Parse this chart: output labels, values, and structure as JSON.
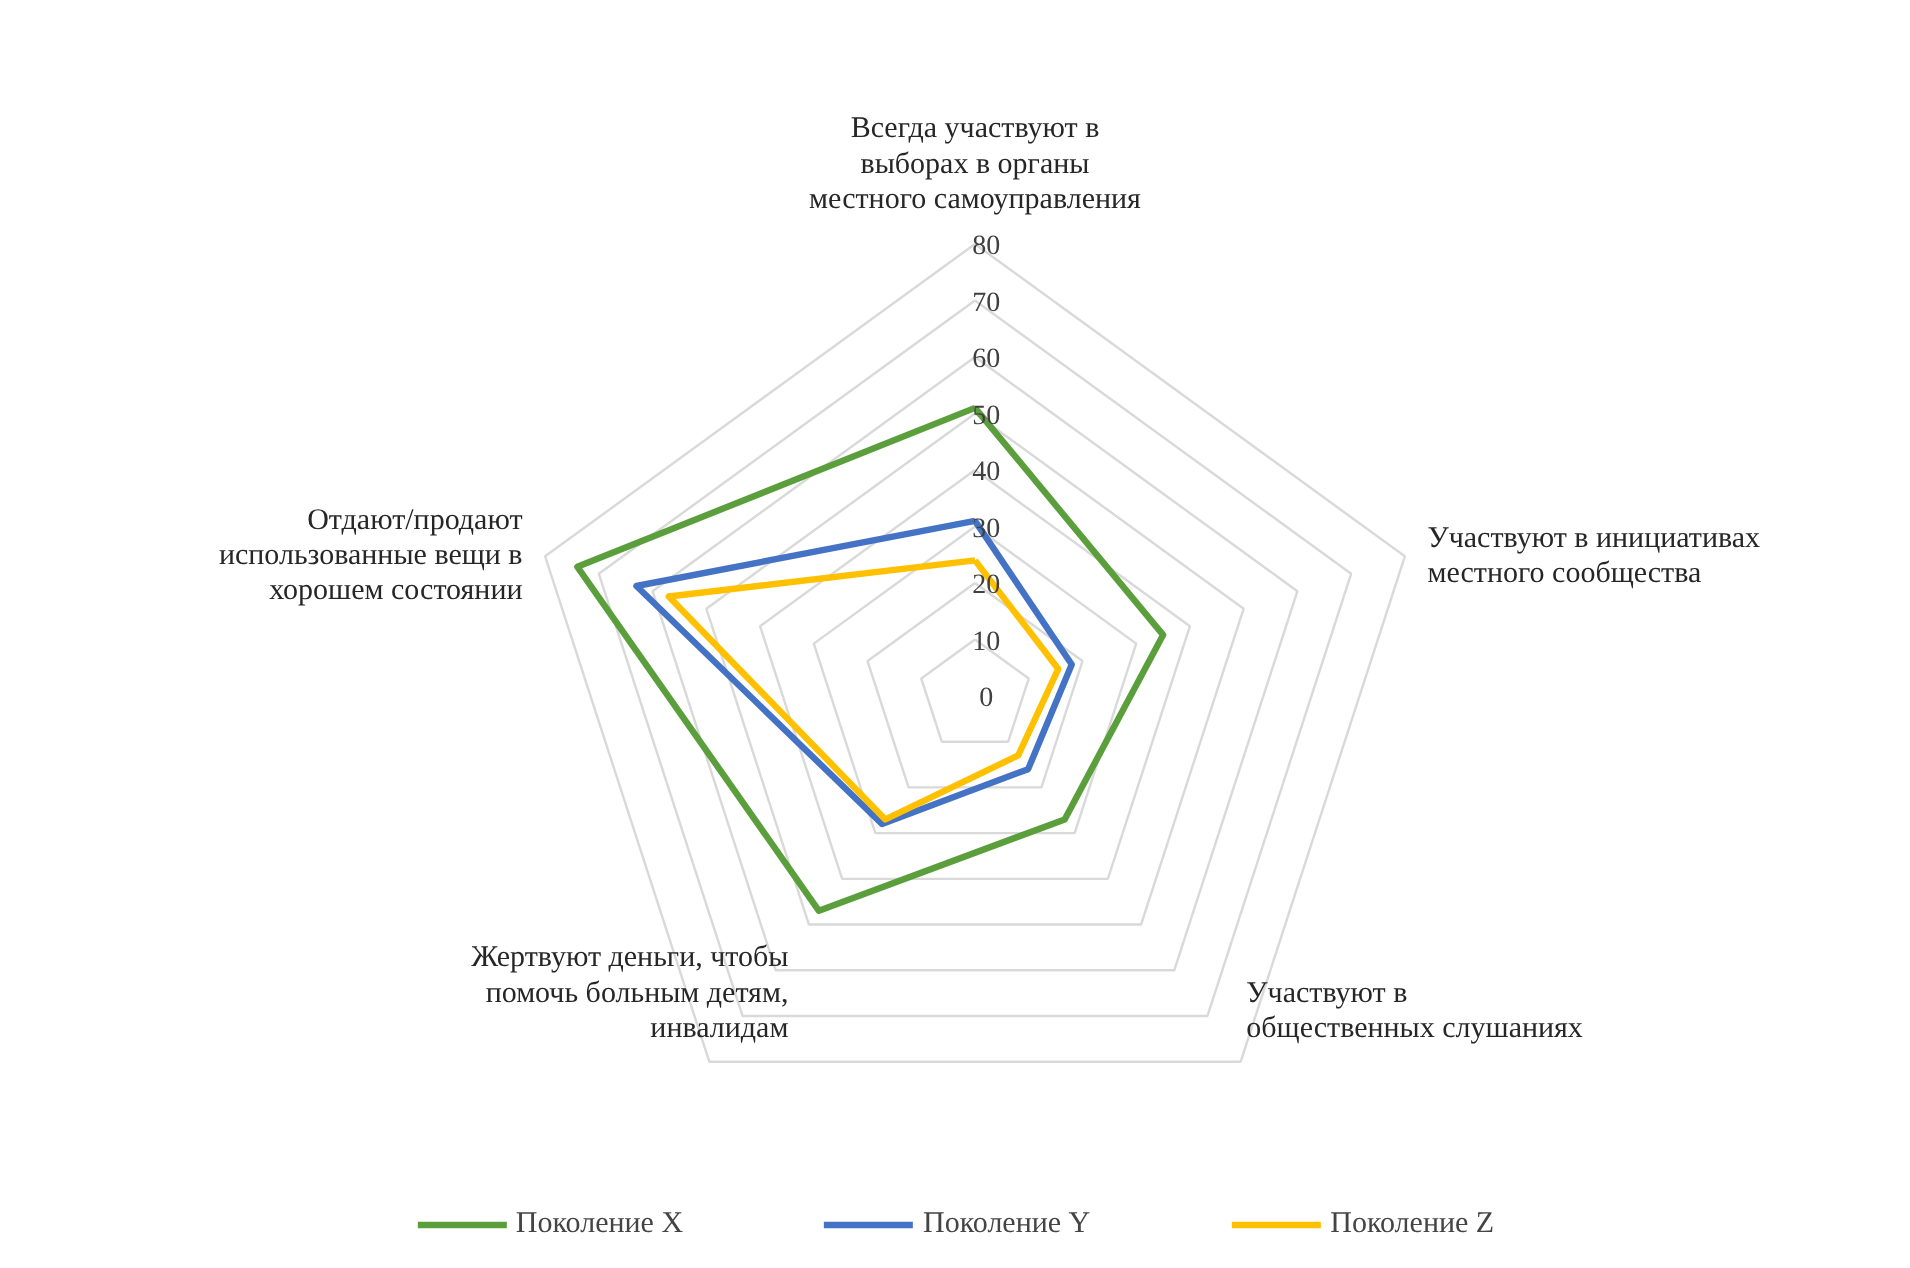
{
  "chart_data": {
    "type": "radar",
    "categories": [
      "Всегда участвуют в выборах в органы местного самоуправления",
      "Участвуют в инициативах местного сообщества",
      "Участвуют в общественных слушаниях",
      "Жертвуют деньги, чтобы помочь больным детям, инвалидам",
      "Отдают/продают использованные вещи в хорошем состоянии"
    ],
    "series": [
      {
        "name": "Поколение X",
        "color": "#5b9e3c",
        "values": [
          51,
          35,
          27,
          47,
          74
        ]
      },
      {
        "name": "Поколение Y",
        "color": "#4472c4",
        "values": [
          31,
          18,
          16,
          28,
          63
        ]
      },
      {
        "name": "Поколение Z",
        "color": "#ffc000",
        "values": [
          24,
          15.5,
          13,
          27,
          57
        ]
      }
    ],
    "ylim": [
      0,
      80
    ],
    "yticks": [
      0,
      10,
      20,
      30,
      40,
      50,
      60,
      70,
      80
    ],
    "grid": true,
    "legend": "bottom",
    "marker": "none",
    "line_style": "solid"
  }
}
